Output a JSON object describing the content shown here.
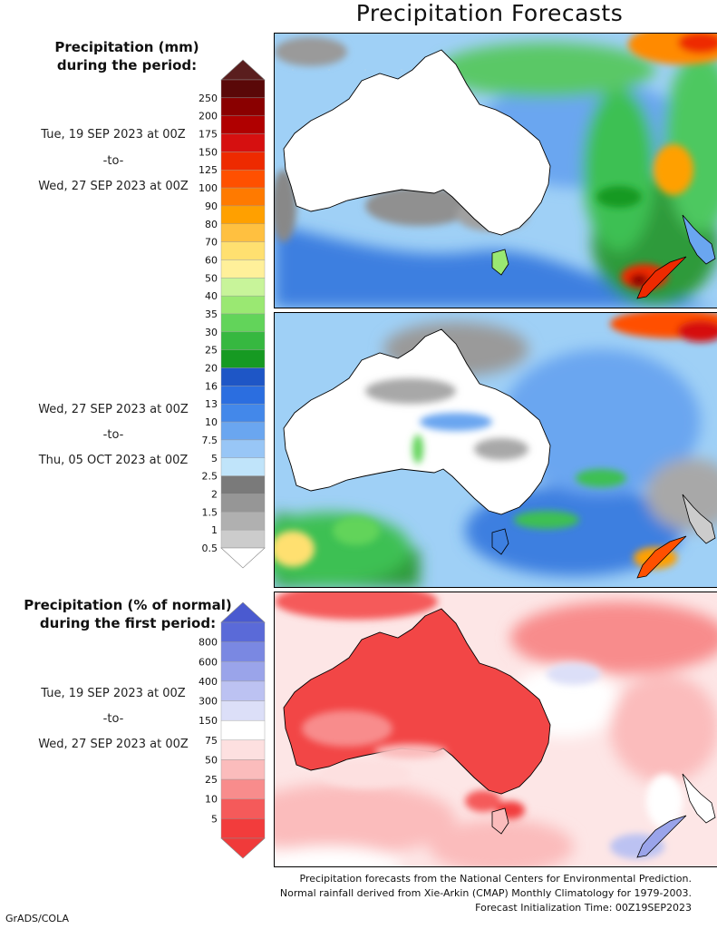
{
  "title": "Precipitation Forecasts",
  "mm_legend": {
    "heading_line1": "Precipitation (mm)",
    "heading_line2": "during the period:",
    "levels": [
      "250",
      "200",
      "175",
      "150",
      "125",
      "100",
      "90",
      "80",
      "70",
      "60",
      "50",
      "40",
      "35",
      "30",
      "25",
      "20",
      "16",
      "13",
      "10",
      "7.5",
      "5",
      "2.5",
      "2",
      "1.5",
      "1",
      "0.5"
    ],
    "colors": [
      "#5a0808",
      "#8a0000",
      "#b00000",
      "#d61010",
      "#ee2a00",
      "#ff5000",
      "#ff7a00",
      "#ffa000",
      "#ffc040",
      "#ffe070",
      "#fff09a",
      "#c8f49a",
      "#9ae872",
      "#62d45a",
      "#36b840",
      "#169a22",
      "#1e56c6",
      "#2b6ee0",
      "#4388ea",
      "#6aa6f0",
      "#98c6f6",
      "#c0e4fa",
      "#7a7a7a",
      "#969696",
      "#b0b0b0",
      "#cccccc"
    ],
    "top_cap_color": "#5a1e1e",
    "bottom_cap_color": "#ffffff"
  },
  "pct_legend": {
    "heading_line1": "Precipitation (% of normal)",
    "heading_line2": "during the first period:",
    "levels": [
      "800",
      "600",
      "400",
      "300",
      "150",
      "75",
      "50",
      "25",
      "10",
      "5"
    ],
    "colors": [
      "#5a6ad8",
      "#7a88e2",
      "#9aa4ea",
      "#bcc2f2",
      "#dcdff8",
      "#ffffff",
      "#fde0e0",
      "#fbbcbc",
      "#f88c8c",
      "#f55a5a",
      "#f23c3c"
    ],
    "top_cap_color": "#4a5ad0",
    "bottom_cap_color": "#f03a3a"
  },
  "periods": [
    {
      "from": "Tue, 19 SEP 2023 at 00Z",
      "sep": "-to-",
      "to": "Wed, 27 SEP 2023 at 00Z"
    },
    {
      "from": "Wed, 27 SEP 2023 at 00Z",
      "sep": "-to-",
      "to": "Thu, 05 OCT 2023 at 00Z"
    },
    {
      "from": "Tue, 19 SEP 2023 at 00Z",
      "sep": "-to-",
      "to": "Wed, 27 SEP 2023 at 00Z"
    }
  ],
  "footer": {
    "line1": "Precipitation forecasts from the National Centers for Environmental Prediction.",
    "line2": "Normal rainfall derived from Xie-Arkin (CMAP) Monthly Climatology for 1979-2003.",
    "line3": "Forecast Initialization Time: 00Z19SEP2023"
  },
  "credit": "GrADS/COLA"
}
